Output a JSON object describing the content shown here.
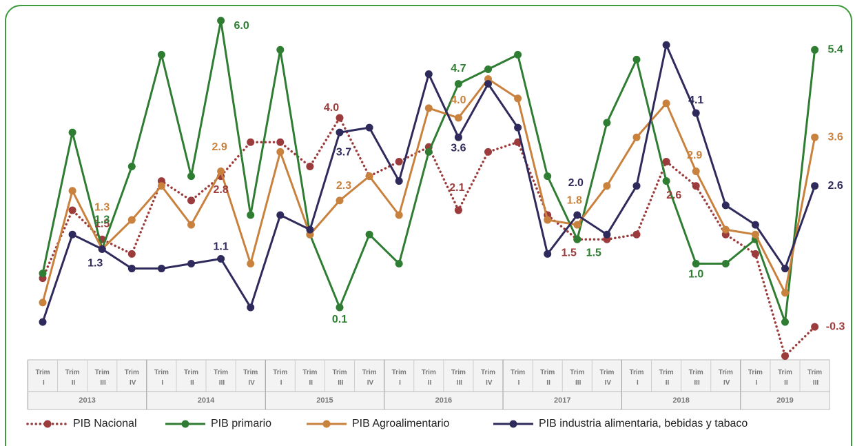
{
  "chart_data": {
    "type": "line",
    "periods": [
      {
        "year": "2013",
        "quarters": [
          "Trim I",
          "Trim II",
          "Trim III",
          "Trim IV"
        ]
      },
      {
        "year": "2014",
        "quarters": [
          "Trim I",
          "Trim II",
          "Trim III",
          "Trim IV"
        ]
      },
      {
        "year": "2015",
        "quarters": [
          "Trim I",
          "Trim II",
          "Trim III",
          "Trim IV"
        ]
      },
      {
        "year": "2016",
        "quarters": [
          "Trim I",
          "Trim II",
          "Trim III",
          "Trim IV"
        ]
      },
      {
        "year": "2017",
        "quarters": [
          "Trim I",
          "Trim II",
          "Trim III",
          "Trim IV"
        ]
      },
      {
        "year": "2018",
        "quarters": [
          "Trim I",
          "Trim II",
          "Trim III",
          "Trim IV"
        ]
      },
      {
        "year": "2019",
        "quarters": [
          "Trim I",
          "Trim II",
          "Trim III"
        ]
      }
    ],
    "series": [
      {
        "name": "PIB Nacional",
        "color": "#9b3b3b",
        "dotted": true,
        "values": [
          0.7,
          2.1,
          1.5,
          1.2,
          2.7,
          2.3,
          2.8,
          3.5,
          3.5,
          3.0,
          4.0,
          2.8,
          3.1,
          3.4,
          2.1,
          3.3,
          3.5,
          2.0,
          1.5,
          1.5,
          1.6,
          3.1,
          2.6,
          1.6,
          1.2,
          -0.9,
          -0.3
        ],
        "value_labels": [
          null,
          null,
          "1.5",
          null,
          null,
          null,
          "2.8",
          null,
          null,
          null,
          "4.0",
          null,
          null,
          null,
          "2.1",
          null,
          null,
          null,
          "1.5",
          null,
          null,
          null,
          "2.6",
          null,
          null,
          null,
          "-0.3"
        ]
      },
      {
        "name": "PIB primario",
        "color": "#2e7d32",
        "values": [
          0.8,
          3.7,
          1.3,
          3.0,
          5.3,
          2.8,
          6.0,
          2.0,
          5.4,
          1.6,
          0.1,
          1.6,
          1.0,
          3.3,
          4.7,
          5.0,
          5.3,
          2.8,
          1.5,
          3.9,
          5.2,
          2.7,
          1.0,
          1.0,
          1.5,
          -0.2,
          5.4
        ],
        "value_labels": [
          null,
          null,
          "1.3",
          null,
          null,
          null,
          "6.0",
          null,
          null,
          null,
          "0.1",
          null,
          null,
          null,
          "4.7",
          null,
          null,
          null,
          "1.5",
          null,
          null,
          null,
          "1.0",
          null,
          null,
          null,
          "5.4"
        ]
      },
      {
        "name": "PIB Agroalimentario",
        "color": "#c9813e",
        "values": [
          0.2,
          2.5,
          1.3,
          1.9,
          2.6,
          1.8,
          2.9,
          1.0,
          3.3,
          1.6,
          2.3,
          2.8,
          2.0,
          4.2,
          4.0,
          4.8,
          4.4,
          1.9,
          1.8,
          2.6,
          3.6,
          4.3,
          2.9,
          1.7,
          1.6,
          0.4,
          3.6
        ],
        "value_labels": [
          null,
          null,
          "1.3",
          null,
          null,
          null,
          "2.9",
          null,
          null,
          null,
          "2.3",
          null,
          null,
          null,
          "4.0",
          null,
          null,
          null,
          "1.8",
          null,
          null,
          null,
          "2.9",
          null,
          null,
          null,
          "3.6"
        ]
      },
      {
        "name": "PIB industria alimentaria, bebidas y tabaco",
        "color": "#2f2a5c",
        "values": [
          -0.2,
          1.6,
          1.3,
          0.9,
          0.9,
          1.0,
          1.1,
          0.1,
          2.0,
          1.7,
          3.7,
          3.8,
          2.7,
          4.9,
          3.6,
          4.7,
          3.8,
          1.2,
          2.0,
          1.6,
          2.6,
          5.5,
          4.1,
          2.2,
          1.8,
          0.9,
          2.6
        ],
        "value_labels": [
          null,
          null,
          "1.3",
          null,
          null,
          null,
          "1.1",
          null,
          null,
          null,
          "3.7",
          null,
          null,
          null,
          "3.6",
          null,
          null,
          null,
          "2.0",
          null,
          null,
          null,
          "4.1",
          null,
          null,
          null,
          "2.6"
        ]
      }
    ]
  }
}
